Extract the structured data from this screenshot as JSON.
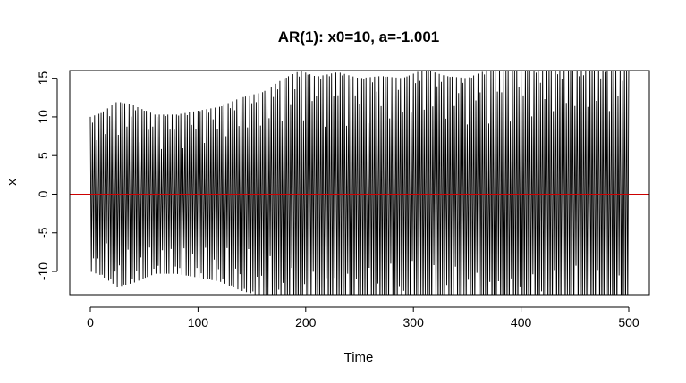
{
  "chart_data": {
    "type": "line",
    "title": "AR(1): x0=10, a=-1.001",
    "xlabel": "Time",
    "ylabel": "x",
    "xlim": [
      0,
      500
    ],
    "ylim": [
      -13,
      16
    ],
    "xticks": [
      0,
      100,
      200,
      300,
      400,
      500
    ],
    "yticks": [
      -10,
      -5,
      0,
      5,
      10,
      15
    ],
    "xtick_labels": [
      "0",
      "100",
      "200",
      "300",
      "400",
      "500"
    ],
    "ytick_labels": [
      "-10",
      "-5",
      "0",
      "5",
      "10",
      "15"
    ],
    "grid": false,
    "legend": "none",
    "reference_line": {
      "y": 0,
      "color": "#cc0000"
    },
    "series": [
      {
        "color": "#000000",
        "description_of_values": "alternating-sign oscillation with slowly modulated amplitude",
        "envelope_t": [
          0,
          10,
          25,
          40,
          60,
          80,
          100,
          120,
          140,
          160,
          180,
          195,
          210,
          230,
          250,
          270,
          290,
          310,
          330,
          350,
          370,
          390,
          410,
          430,
          450,
          470,
          500
        ],
        "envelope_amplitude": [
          10.0,
          10.5,
          12.0,
          11.5,
          10.3,
          10.3,
          10.8,
          11.3,
          12.5,
          13.2,
          15.0,
          16.0,
          15.2,
          15.8,
          15.0,
          15.3,
          15.0,
          16.2,
          15.3,
          15.0,
          16.2,
          16.4,
          16.5,
          16.6,
          16.7,
          16.8,
          17.0
        ]
      }
    ]
  }
}
